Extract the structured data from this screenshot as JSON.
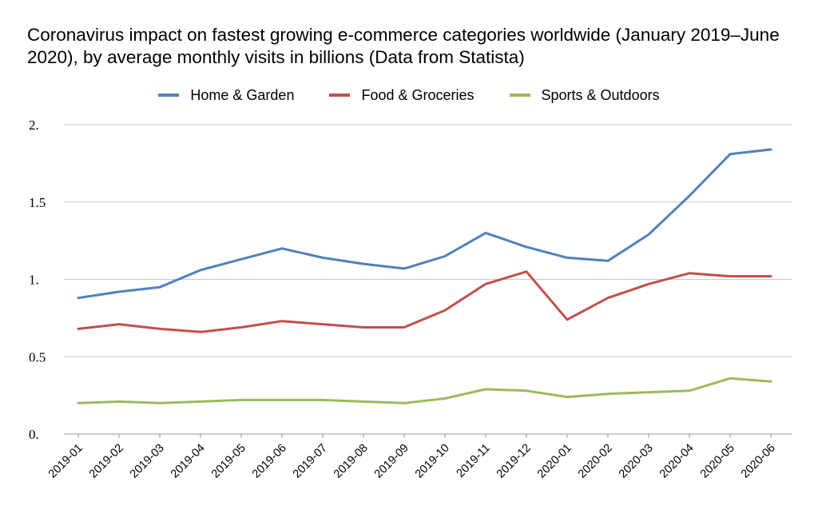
{
  "chart_data": {
    "type": "line",
    "title": "Coronavirus impact on fastest growing e-commerce categories worldwide (January 2019–June 2020), by average monthly visits in billions (Data from Statista)",
    "xlabel": "",
    "ylabel": "",
    "ylim": [
      0,
      2
    ],
    "yticks": [
      {
        "value": 0,
        "label": "0."
      },
      {
        "value": 0.5,
        "label": "0.5"
      },
      {
        "value": 1,
        "label": "1."
      },
      {
        "value": 1.5,
        "label": "1.5"
      },
      {
        "value": 2,
        "label": "2."
      }
    ],
    "grid": true,
    "legend_position": "top",
    "categories": [
      "2019-01",
      "2019-02",
      "2019-03",
      "2019-04",
      "2019-05",
      "2019-06",
      "2019-07",
      "2019-08",
      "2019-09",
      "2019-10",
      "2019-11",
      "2019-12",
      "2020-01",
      "2020-02",
      "2020-03",
      "2020-04",
      "2020-05",
      "2020-06"
    ],
    "series": [
      {
        "name": "Home & Garden",
        "color": "#4f81bd",
        "values": [
          0.88,
          0.92,
          0.95,
          1.06,
          1.13,
          1.2,
          1.14,
          1.1,
          1.07,
          1.15,
          1.3,
          1.21,
          1.14,
          1.12,
          1.29,
          1.54,
          1.81,
          1.84
        ]
      },
      {
        "name": "Food & Groceries",
        "color": "#c0504d",
        "values": [
          0.68,
          0.71,
          0.68,
          0.66,
          0.69,
          0.73,
          0.71,
          0.69,
          0.69,
          0.8,
          0.97,
          1.05,
          0.74,
          0.88,
          0.97,
          1.04,
          1.02,
          1.02
        ]
      },
      {
        "name": "Sports & Outdoors",
        "color": "#9bbb59",
        "values": [
          0.2,
          0.21,
          0.2,
          0.21,
          0.22,
          0.22,
          0.22,
          0.21,
          0.2,
          0.23,
          0.29,
          0.28,
          0.24,
          0.26,
          0.27,
          0.28,
          0.36,
          0.34
        ]
      }
    ]
  }
}
